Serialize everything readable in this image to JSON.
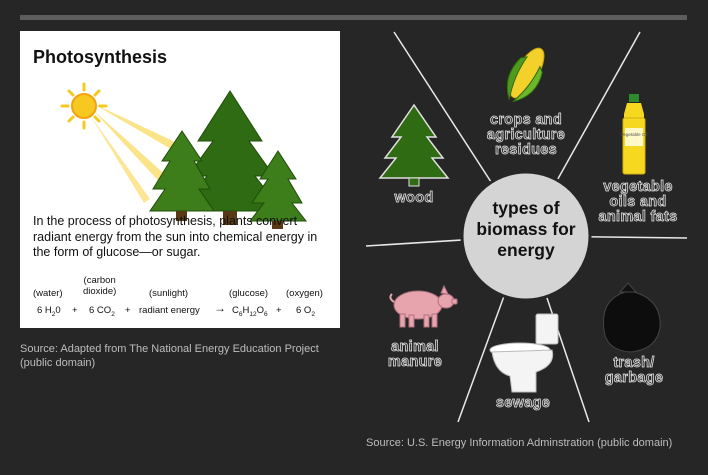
{
  "photosynthesis": {
    "title": "Photosynthesis",
    "description": "In the process of photosynthesis, plants convert radiant energy from the sun into chemical energy in the form of glucose—or sugar.",
    "equation": {
      "labels": {
        "water": "(water)",
        "carbon_dioxide_1": "(carbon",
        "carbon_dioxide_2": "dioxide)",
        "sunlight": "(sunlight)",
        "glucose": "(glucose)",
        "oxygen": "(oxygen)"
      },
      "terms": {
        "water": "6 H",
        "water_sub": "2",
        "water_rest": "0",
        "plus1": "+",
        "co2": "6 CO",
        "co2_sub": "2",
        "plus2": "+",
        "energy": "radiant energy",
        "arrow": "→",
        "glucose_c": "C",
        "glucose_c_sub": "6",
        "glucose_h": "H",
        "glucose_h_sub": "12",
        "glucose_o": "O",
        "glucose_o_sub": "6",
        "plus3": "+",
        "o2": "6 O",
        "o2_sub": "2"
      }
    },
    "source": "Source: Adapted from The National Energy Education Project (public domain)"
  },
  "biomass": {
    "center_title": "types of biomass for energy",
    "types": {
      "crops": "crops and agriculture residues",
      "wood": "wood",
      "oils": "vegetable oils and animal fats",
      "manure": "animal manure",
      "sewage": "sewage",
      "trash": "trash/ garbage"
    },
    "bottle_label": "Vegetable Oil",
    "source": "Source: U.S. Energy Information Adminstration (public domain)"
  },
  "colors": {
    "background": "#262626",
    "tree_green": "#2f6b12",
    "sun": "#f7c81f",
    "pig": "#e8a4ac",
    "bottle": "#f5d81f"
  }
}
